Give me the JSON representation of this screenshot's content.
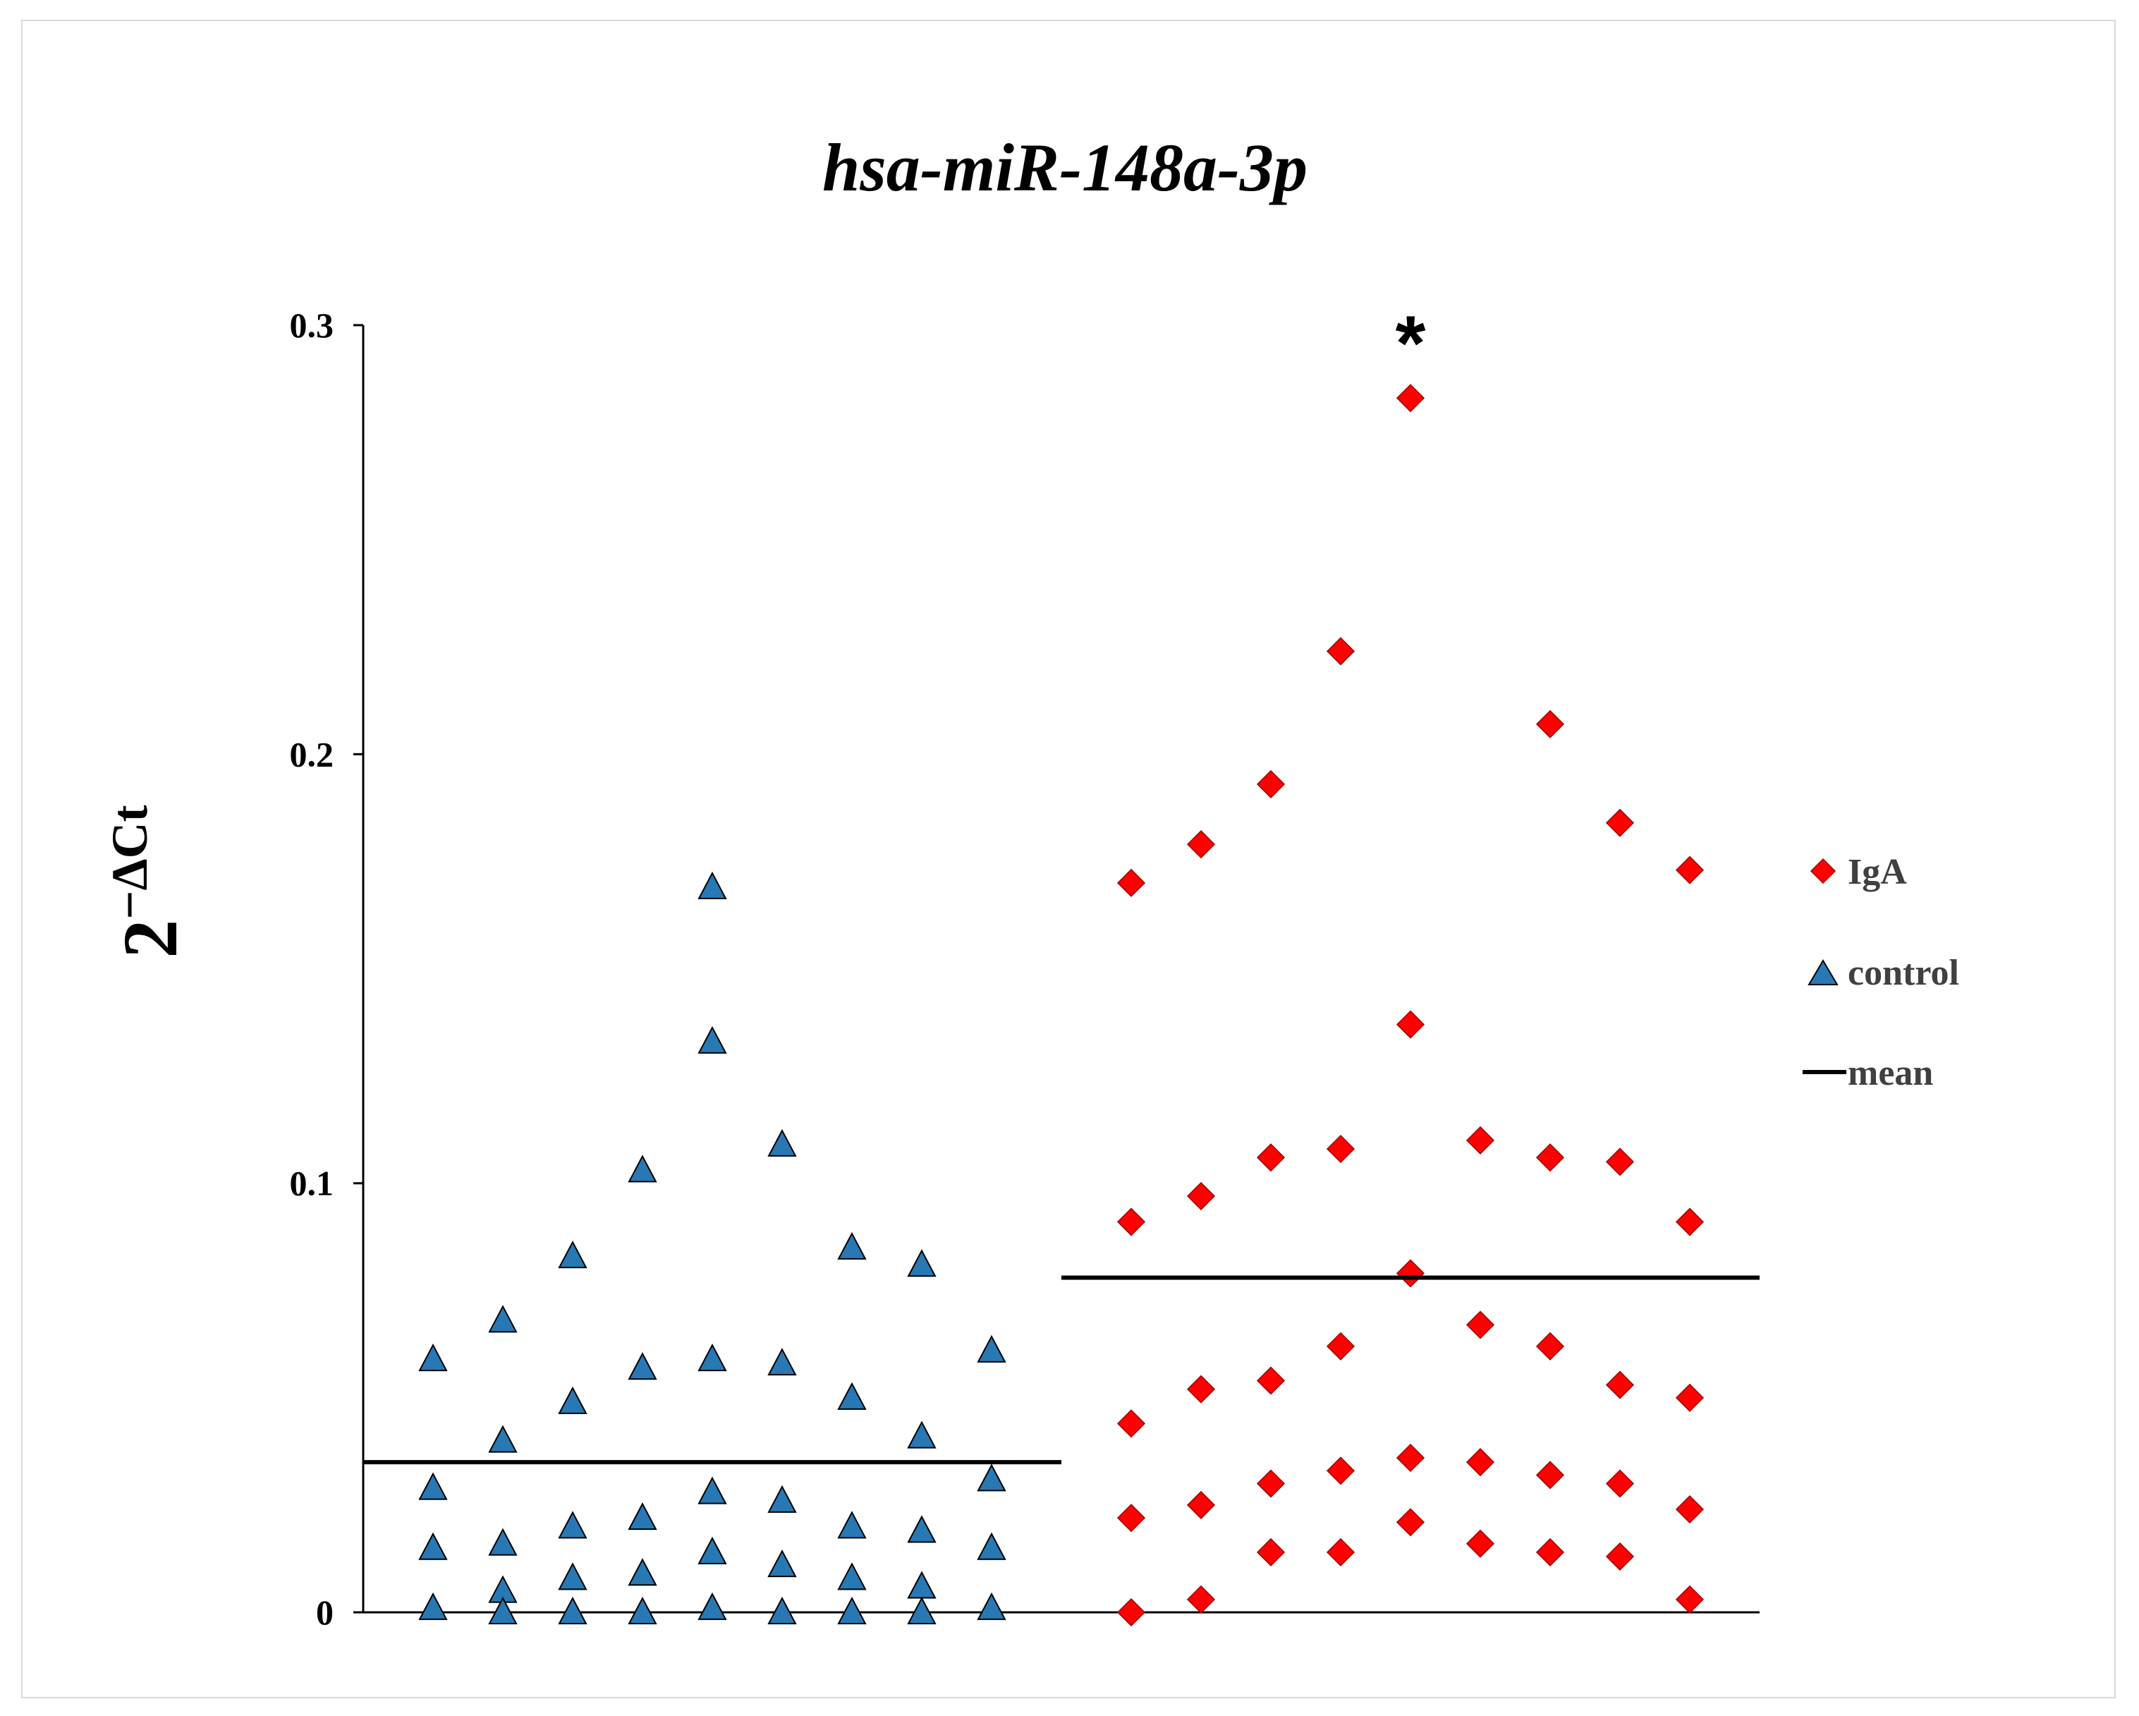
{
  "chart_data": {
    "type": "scatter",
    "title": "hsa-miR-148a-3p",
    "ylabel": {
      "base": "2",
      "exponent": "−ΔCt"
    },
    "xlabel": "",
    "ylim": [
      0,
      0.3
    ],
    "yticks": [
      "0",
      "0.1",
      "0.2",
      "0.3"
    ],
    "significance_marker": "*",
    "legend": {
      "position": "right",
      "entries": [
        "IgA",
        "control",
        "mean"
      ]
    },
    "colors": {
      "control": "#2878b4",
      "IgA": "#ff0000",
      "mean": "#000000",
      "axis": "#000000"
    },
    "series": [
      {
        "name": "control",
        "marker": "triangle",
        "mean": 0.035,
        "points": [
          {
            "x": 1,
            "y": 0.059
          },
          {
            "x": 1,
            "y": 0.029
          },
          {
            "x": 1,
            "y": 0.015
          },
          {
            "x": 1,
            "y": 0.001
          },
          {
            "x": 2,
            "y": 0.068
          },
          {
            "x": 2,
            "y": 0.04
          },
          {
            "x": 2,
            "y": 0.016
          },
          {
            "x": 2,
            "y": 0.005
          },
          {
            "x": 2,
            "y": 0.0
          },
          {
            "x": 3,
            "y": 0.083
          },
          {
            "x": 3,
            "y": 0.049
          },
          {
            "x": 3,
            "y": 0.02
          },
          {
            "x": 3,
            "y": 0.008
          },
          {
            "x": 3,
            "y": 0.0
          },
          {
            "x": 4,
            "y": 0.103
          },
          {
            "x": 4,
            "y": 0.057
          },
          {
            "x": 4,
            "y": 0.022
          },
          {
            "x": 4,
            "y": 0.009
          },
          {
            "x": 4,
            "y": 0.0
          },
          {
            "x": 5,
            "y": 0.169
          },
          {
            "x": 5,
            "y": 0.133
          },
          {
            "x": 5,
            "y": 0.059
          },
          {
            "x": 5,
            "y": 0.028
          },
          {
            "x": 5,
            "y": 0.014
          },
          {
            "x": 5,
            "y": 0.001
          },
          {
            "x": 6,
            "y": 0.109
          },
          {
            "x": 6,
            "y": 0.058
          },
          {
            "x": 6,
            "y": 0.026
          },
          {
            "x": 6,
            "y": 0.011
          },
          {
            "x": 6,
            "y": 0.0
          },
          {
            "x": 7,
            "y": 0.085
          },
          {
            "x": 7,
            "y": 0.05
          },
          {
            "x": 7,
            "y": 0.02
          },
          {
            "x": 7,
            "y": 0.008
          },
          {
            "x": 7,
            "y": 0.0
          },
          {
            "x": 8,
            "y": 0.081
          },
          {
            "x": 8,
            "y": 0.041
          },
          {
            "x": 8,
            "y": 0.019
          },
          {
            "x": 8,
            "y": 0.006
          },
          {
            "x": 8,
            "y": 0.0
          },
          {
            "x": 9,
            "y": 0.061
          },
          {
            "x": 9,
            "y": 0.031
          },
          {
            "x": 9,
            "y": 0.015
          },
          {
            "x": 9,
            "y": 0.001
          }
        ]
      },
      {
        "name": "IgA",
        "marker": "diamond",
        "mean": 0.078,
        "points": [
          {
            "x": 11,
            "y": 0.17
          },
          {
            "x": 11,
            "y": 0.091
          },
          {
            "x": 11,
            "y": 0.044
          },
          {
            "x": 11,
            "y": 0.022
          },
          {
            "x": 11,
            "y": 0.0
          },
          {
            "x": 12,
            "y": 0.179
          },
          {
            "x": 12,
            "y": 0.097
          },
          {
            "x": 12,
            "y": 0.052
          },
          {
            "x": 12,
            "y": 0.025
          },
          {
            "x": 12,
            "y": 0.003
          },
          {
            "x": 13,
            "y": 0.193
          },
          {
            "x": 13,
            "y": 0.106
          },
          {
            "x": 13,
            "y": 0.054
          },
          {
            "x": 13,
            "y": 0.03
          },
          {
            "x": 13,
            "y": 0.014
          },
          {
            "x": 14,
            "y": 0.224
          },
          {
            "x": 14,
            "y": 0.108
          },
          {
            "x": 14,
            "y": 0.062
          },
          {
            "x": 14,
            "y": 0.033
          },
          {
            "x": 14,
            "y": 0.014
          },
          {
            "x": 15,
            "y": 0.283
          },
          {
            "x": 15,
            "y": 0.137
          },
          {
            "x": 15,
            "y": 0.079
          },
          {
            "x": 15,
            "y": 0.036
          },
          {
            "x": 15,
            "y": 0.021
          },
          {
            "x": 16,
            "y": 0.11
          },
          {
            "x": 16,
            "y": 0.067
          },
          {
            "x": 16,
            "y": 0.035
          },
          {
            "x": 16,
            "y": 0.016
          },
          {
            "x": 17,
            "y": 0.207
          },
          {
            "x": 17,
            "y": 0.106
          },
          {
            "x": 17,
            "y": 0.062
          },
          {
            "x": 17,
            "y": 0.032
          },
          {
            "x": 17,
            "y": 0.014
          },
          {
            "x": 18,
            "y": 0.184
          },
          {
            "x": 18,
            "y": 0.105
          },
          {
            "x": 18,
            "y": 0.053
          },
          {
            "x": 18,
            "y": 0.03
          },
          {
            "x": 18,
            "y": 0.013
          },
          {
            "x": 19,
            "y": 0.173
          },
          {
            "x": 19,
            "y": 0.091
          },
          {
            "x": 19,
            "y": 0.05
          },
          {
            "x": 19,
            "y": 0.024
          },
          {
            "x": 19,
            "y": 0.003
          }
        ]
      }
    ]
  }
}
